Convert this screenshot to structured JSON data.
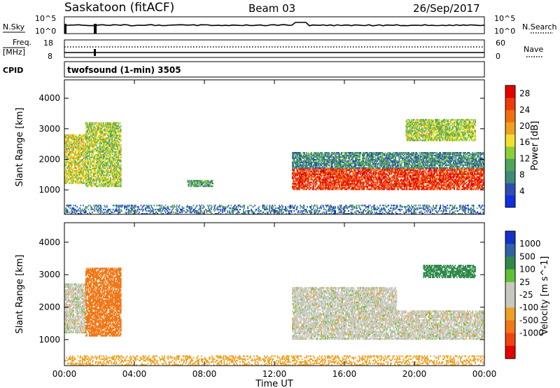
{
  "header": {
    "title": "Saskatoon (fitACF)",
    "beam": "Beam 03",
    "date": "26/Sep/2017"
  },
  "noise_panel": {
    "left_label": "N.Sky",
    "left_ticks": [
      "10^5",
      "10^0"
    ],
    "right_ticks": [
      "10^5",
      "10^0"
    ],
    "right_label": "N.Search"
  },
  "freq_panel": {
    "left_label_1": "Freq.",
    "left_label_2": "[MHz]",
    "left_ticks": [
      "18",
      "8"
    ],
    "right_ticks": [
      "60",
      "0"
    ],
    "right_label": "Nave"
  },
  "cpid_panel": {
    "left_label": "CPID",
    "text": "twofsound (1-min) 3505"
  },
  "colors": {
    "power_scale": [
      "#1030e0",
      "#2c4fb0",
      "#3f8a7a",
      "#4fa55a",
      "#8ccf3a",
      "#f2e030",
      "#f0a020",
      "#f07010",
      "#ee3b0c",
      "#e60000"
    ],
    "velocity_scale": [
      "#1432c8",
      "#2e63a8",
      "#2f8a4a",
      "#62c034",
      "#c8c8c0",
      "#c8c8c0",
      "#f0a020",
      "#f07818",
      "#ee4410",
      "#e60000"
    ]
  },
  "chart_data": [
    {
      "type": "heatmap",
      "quantity": "Power",
      "xlabel": "Time UT",
      "ylabel": "Slant Range [km]",
      "x_ticks": [
        "00:00",
        "04:00",
        "08:00",
        "12:00",
        "16:00",
        "20:00",
        "00:00"
      ],
      "y_ticks": [
        1000,
        2000,
        3000,
        4000
      ],
      "ylim": [
        200,
        4600
      ],
      "colorbar_label": "Power [dB]",
      "colorbar_ticks": [
        4,
        8,
        12,
        16,
        20,
        24,
        28
      ],
      "colorbar_range": [
        0,
        30
      ],
      "echo_regions": [
        {
          "t_start": 0.0,
          "t_end": 1.2,
          "range_start": 1200,
          "range_end": 2800,
          "power": 16
        },
        {
          "t_start": 1.2,
          "t_end": 3.2,
          "range_start": 1100,
          "range_end": 3200,
          "power": 14
        },
        {
          "t_start": 7.0,
          "t_end": 8.5,
          "range_start": 1100,
          "range_end": 1300,
          "power": 10
        },
        {
          "t_start": 13.0,
          "t_end": 24.0,
          "range_start": 1000,
          "range_end": 1700,
          "power": 26
        },
        {
          "t_start": 13.0,
          "t_end": 24.0,
          "range_start": 1700,
          "range_end": 2200,
          "power": 8
        },
        {
          "t_start": 19.5,
          "t_end": 23.5,
          "range_start": 2600,
          "range_end": 3300,
          "power": 14
        },
        {
          "t_start": 0.0,
          "t_end": 24.0,
          "range_start": 200,
          "range_end": 500,
          "power": 6
        }
      ]
    },
    {
      "type": "heatmap",
      "quantity": "Velocity",
      "xlabel": "Time UT",
      "ylabel": "Slant Range [km]",
      "x_ticks": [
        "00:00",
        "04:00",
        "08:00",
        "12:00",
        "16:00",
        "20:00",
        "00:00"
      ],
      "y_ticks": [
        1000,
        2000,
        3000,
        4000
      ],
      "ylim": [
        200,
        4600
      ],
      "colorbar_label": "Velocity [m s^-1]",
      "colorbar_ticks": [
        "1000",
        "500",
        "100",
        "25",
        "-25",
        "-100",
        "-500",
        "-1000"
      ],
      "echo_regions": [
        {
          "t_start": 0.0,
          "t_end": 1.2,
          "range_start": 1200,
          "range_end": 2700,
          "velocity": 0
        },
        {
          "t_start": 1.2,
          "t_end": 3.2,
          "range_start": 1100,
          "range_end": 3200,
          "velocity": -150
        },
        {
          "t_start": 13.0,
          "t_end": 24.0,
          "range_start": 1000,
          "range_end": 1900,
          "velocity": 0
        },
        {
          "t_start": 13.0,
          "t_end": 19.0,
          "range_start": 1900,
          "range_end": 2600,
          "velocity": 0
        },
        {
          "t_start": 20.5,
          "t_end": 23.5,
          "range_start": 2900,
          "range_end": 3300,
          "velocity": 150
        },
        {
          "t_start": 0.0,
          "t_end": 24.0,
          "range_start": 200,
          "range_end": 500,
          "velocity": -60
        }
      ]
    }
  ]
}
